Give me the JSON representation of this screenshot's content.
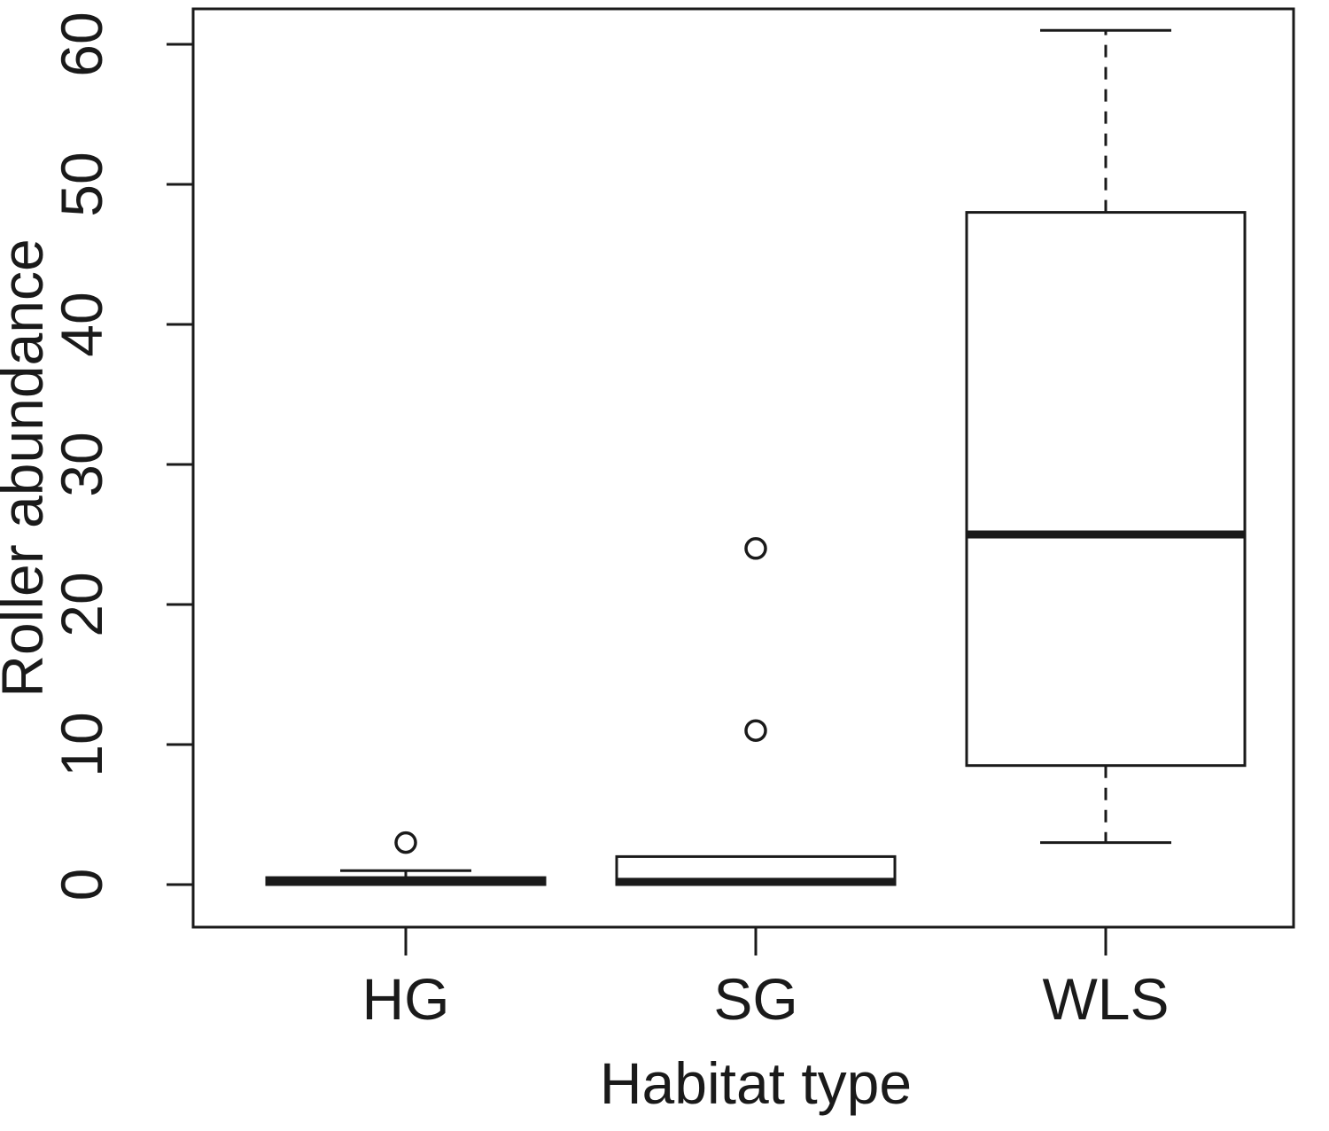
{
  "chart_data": {
    "type": "boxplot",
    "title": "",
    "xlabel": "Habitat type",
    "ylabel": "Roller abundance",
    "categories": [
      "HG",
      "SG",
      "WLS"
    ],
    "yticks": [
      0,
      10,
      20,
      30,
      40,
      50,
      60
    ],
    "ylim": [
      0,
      63
    ],
    "grid": false,
    "legend": "none",
    "series": [
      {
        "name": "HG",
        "whisker_low": 0,
        "q1": 0,
        "median": 0.2,
        "q3": 0.5,
        "whisker_high": 1,
        "outliers": [
          3
        ]
      },
      {
        "name": "SG",
        "whisker_low": 0,
        "q1": 0,
        "median": 0.2,
        "q3": 2,
        "whisker_high": 2,
        "outliers": [
          11,
          24
        ]
      },
      {
        "name": "WLS",
        "whisker_low": 3,
        "q1": 8.5,
        "median": 25,
        "q3": 48,
        "whisker_high": 61,
        "outliers": []
      }
    ]
  }
}
